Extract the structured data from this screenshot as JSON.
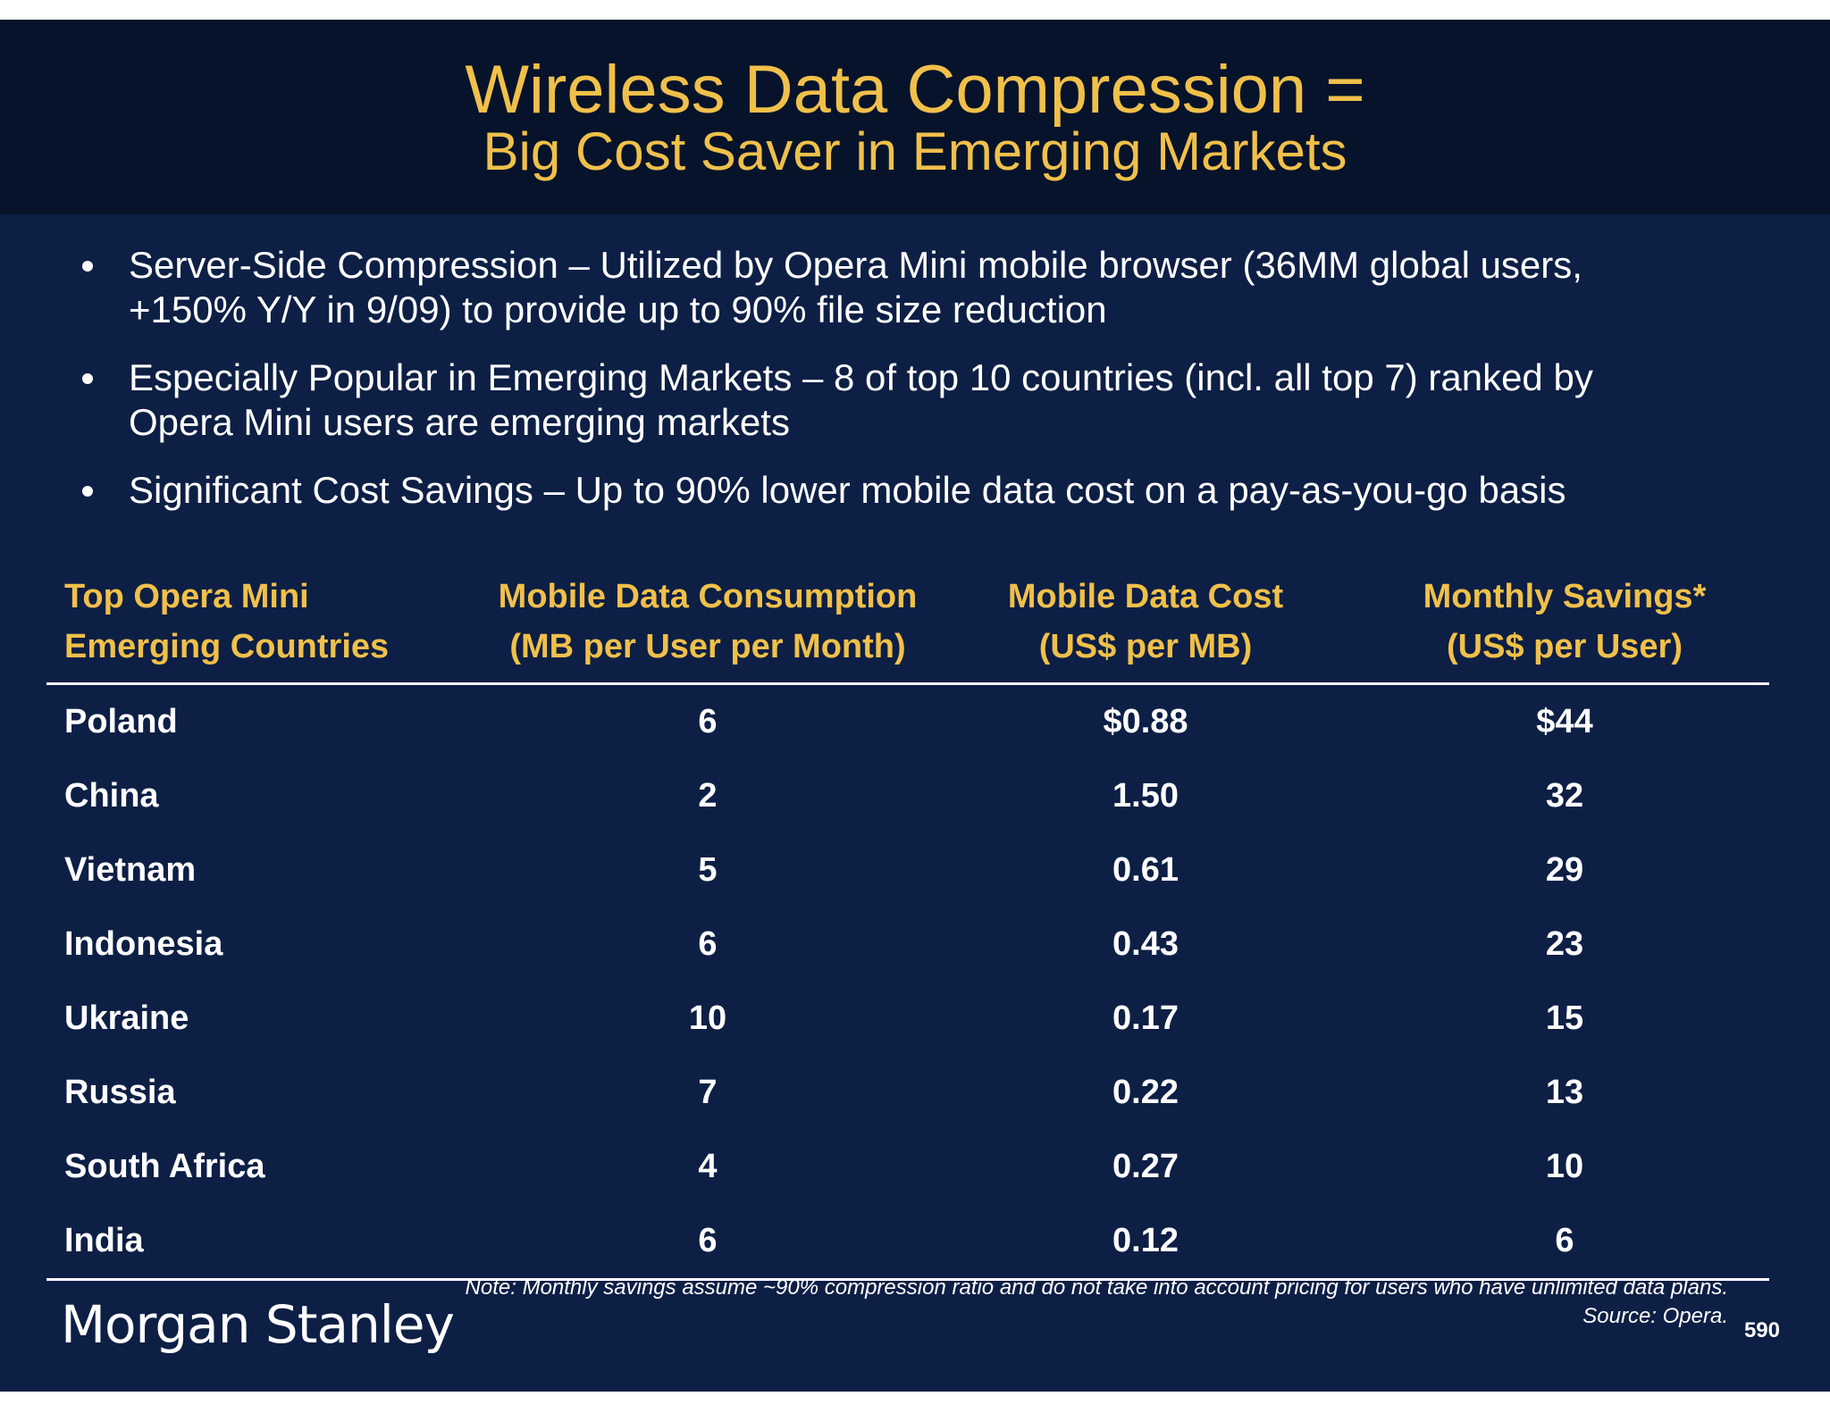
{
  "title": {
    "line1": "Wireless Data Compression =",
    "line2": "Big Cost Saver in Emerging Markets"
  },
  "bullets": [
    {
      "line1": "Server-Side Compression – Utilized by Opera Mini mobile browser (36MM global users,",
      "line2": "+150% Y/Y in 9/09) to provide up to 90% file size reduction"
    },
    {
      "line1": "Especially Popular in Emerging Markets – 8 of top 10 countries (incl. all top 7) ranked by",
      "line2": "Opera Mini users are emerging markets"
    },
    {
      "line1": "Significant Cost Savings – Up to 90% lower mobile data cost on a pay-as-you-go basis",
      "line2": ""
    }
  ],
  "table": {
    "headers": [
      {
        "line1": "Top Opera Mini",
        "line2": "Emerging Countries"
      },
      {
        "line1": "Mobile Data Consumption",
        "line2": "(MB per User per Month)"
      },
      {
        "line1": "Mobile Data Cost",
        "line2": "(US$ per MB)"
      },
      {
        "line1": "Monthly Savings*",
        "line2": "(US$ per User)"
      }
    ],
    "rows": [
      [
        "Poland",
        "6",
        "$0.88",
        "$44"
      ],
      [
        "China",
        "2",
        "1.50",
        "32"
      ],
      [
        "Vietnam",
        "5",
        "0.61",
        "29"
      ],
      [
        "Indonesia",
        "6",
        "0.43",
        "23"
      ],
      [
        "Ukraine",
        "10",
        "0.17",
        "15"
      ],
      [
        "Russia",
        "7",
        "0.22",
        "13"
      ],
      [
        "South Africa",
        "4",
        "0.27",
        "10"
      ],
      [
        "India",
        "6",
        "0.12",
        "6"
      ]
    ]
  },
  "footer": {
    "note": "Note: Monthly savings assume ~90% compression ratio and do not take into account pricing for users who have unlimited data plans.",
    "source": "Source: Opera.",
    "logo": "Morgan Stanley",
    "page_number": "590"
  },
  "colors": {
    "background": "#0d1f45",
    "title_band": "#06132b",
    "accent": "#f0c04a",
    "text": "#ffffff"
  }
}
